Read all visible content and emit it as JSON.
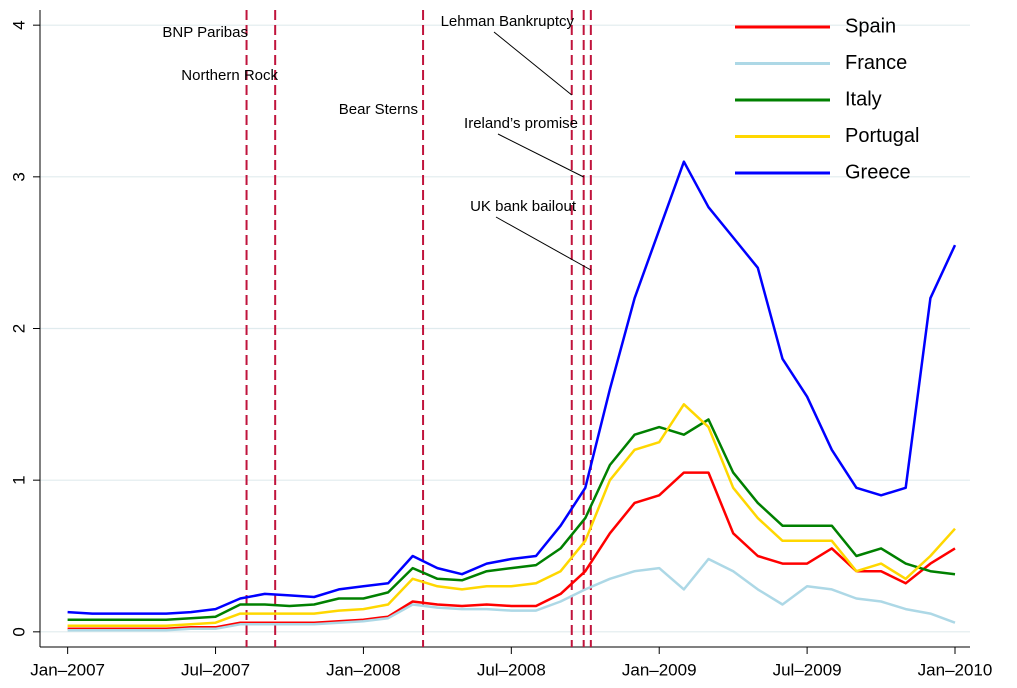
{
  "chart_data": {
    "type": "line",
    "x": [
      "2007-01",
      "2007-02",
      "2007-03",
      "2007-04",
      "2007-05",
      "2007-06",
      "2007-07",
      "2007-08",
      "2007-09",
      "2007-10",
      "2007-11",
      "2007-12",
      "2008-01",
      "2008-02",
      "2008-03",
      "2008-04",
      "2008-05",
      "2008-06",
      "2008-07",
      "2008-08",
      "2008-09",
      "2008-10",
      "2008-11",
      "2008-12",
      "2009-01",
      "2009-02",
      "2009-03",
      "2009-04",
      "2009-05",
      "2009-06",
      "2009-07",
      "2009-08",
      "2009-09",
      "2009-10",
      "2009-11",
      "2009-12",
      "2010-01"
    ],
    "series": [
      {
        "name": "Spain",
        "color": "#ff0000",
        "values": [
          0.02,
          0.02,
          0.02,
          0.02,
          0.02,
          0.03,
          0.03,
          0.06,
          0.06,
          0.06,
          0.06,
          0.07,
          0.08,
          0.1,
          0.2,
          0.18,
          0.17,
          0.18,
          0.17,
          0.17,
          0.25,
          0.4,
          0.65,
          0.85,
          0.9,
          1.05,
          1.05,
          0.65,
          0.5,
          0.45,
          0.45,
          0.55,
          0.4,
          0.4,
          0.32,
          0.45,
          0.55
        ]
      },
      {
        "name": "France",
        "color": "#add8e6",
        "values": [
          0.01,
          0.01,
          0.01,
          0.01,
          0.01,
          0.02,
          0.02,
          0.05,
          0.05,
          0.05,
          0.05,
          0.06,
          0.07,
          0.09,
          0.18,
          0.16,
          0.15,
          0.15,
          0.14,
          0.14,
          0.2,
          0.28,
          0.35,
          0.4,
          0.42,
          0.28,
          0.48,
          0.4,
          0.28,
          0.18,
          0.3,
          0.28,
          0.22,
          0.2,
          0.15,
          0.12,
          0.06
        ]
      },
      {
        "name": "Italy",
        "color": "#008000",
        "values": [
          0.08,
          0.08,
          0.08,
          0.08,
          0.08,
          0.09,
          0.1,
          0.18,
          0.18,
          0.17,
          0.18,
          0.22,
          0.22,
          0.26,
          0.42,
          0.35,
          0.34,
          0.4,
          0.42,
          0.44,
          0.55,
          0.75,
          1.1,
          1.3,
          1.35,
          1.3,
          1.4,
          1.05,
          0.85,
          0.7,
          0.7,
          0.7,
          0.5,
          0.55,
          0.45,
          0.4,
          0.38
        ]
      },
      {
        "name": "Portugal",
        "color": "#ffd700",
        "values": [
          0.04,
          0.04,
          0.04,
          0.04,
          0.04,
          0.05,
          0.06,
          0.12,
          0.12,
          0.12,
          0.12,
          0.14,
          0.15,
          0.18,
          0.35,
          0.3,
          0.28,
          0.3,
          0.3,
          0.32,
          0.4,
          0.6,
          1.0,
          1.2,
          1.25,
          1.5,
          1.35,
          0.95,
          0.75,
          0.6,
          0.6,
          0.6,
          0.4,
          0.45,
          0.35,
          0.5,
          0.68
        ]
      },
      {
        "name": "Greece",
        "color": "#0000ff",
        "values": [
          0.13,
          0.12,
          0.12,
          0.12,
          0.12,
          0.13,
          0.15,
          0.22,
          0.25,
          0.24,
          0.23,
          0.28,
          0.3,
          0.32,
          0.5,
          0.42,
          0.38,
          0.45,
          0.48,
          0.5,
          0.7,
          0.95,
          1.6,
          2.2,
          2.65,
          3.1,
          2.8,
          2.6,
          2.4,
          1.8,
          1.55,
          1.2,
          0.95,
          0.9,
          0.95,
          2.2,
          2.55
        ]
      }
    ],
    "events": [
      {
        "label": "BNP Paribas",
        "x": "2007-08-09"
      },
      {
        "label": "Northern Rock",
        "x": "2007-09-14"
      },
      {
        "label": "Bear Sterns",
        "x": "2008-03-14"
      },
      {
        "label": "Lehman Bankruptcy",
        "x": "2008-09-15"
      },
      {
        "label": "Ireland’s promise",
        "x": "2008-09-30"
      },
      {
        "label": "UK bank bailout",
        "x": "2008-10-08"
      }
    ],
    "xlim": [
      "2006-12",
      "2010-01"
    ],
    "xticks": [
      {
        "value": "2007-01",
        "label": "Jan–2007"
      },
      {
        "value": "2007-07",
        "label": "Jul–2007"
      },
      {
        "value": "2008-01",
        "label": "Jan–2008"
      },
      {
        "value": "2008-07",
        "label": "Jul–2008"
      },
      {
        "value": "2009-01",
        "label": "Jan–2009"
      },
      {
        "value": "2009-07",
        "label": "Jul–2009"
      },
      {
        "value": "2010-01",
        "label": "Jan–2010"
      }
    ],
    "ylim": [
      -0.1,
      4.1
    ],
    "yticks": [
      0,
      1,
      2,
      3,
      4
    ],
    "grid": true,
    "legend": "top-right"
  }
}
